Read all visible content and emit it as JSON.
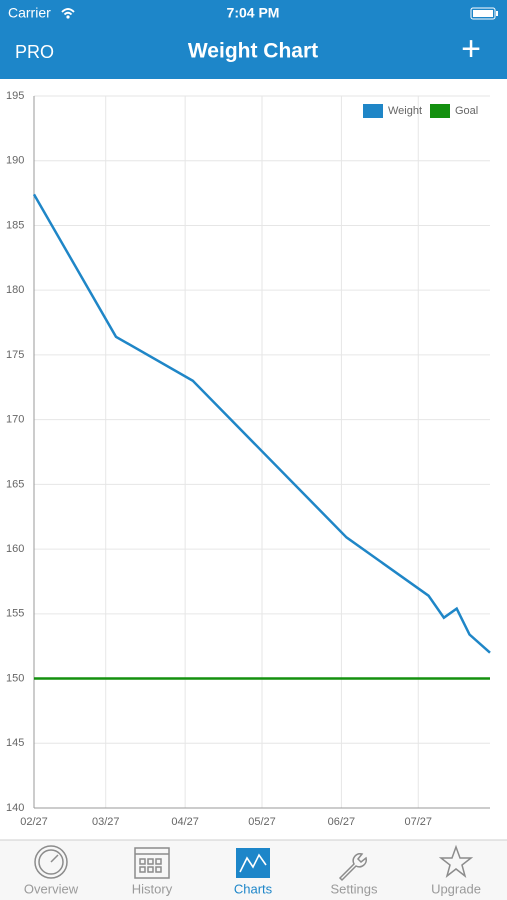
{
  "status_bar": {
    "carrier": "Carrier",
    "time": "7:04 PM"
  },
  "nav_bar": {
    "left": "PRO",
    "title": "Weight Chart",
    "right": "+"
  },
  "chart_data": {
    "type": "line",
    "xlim": [
      "02/27",
      "08/24"
    ],
    "xticks": [
      "02/27",
      "03/27",
      "04/27",
      "05/27",
      "06/27",
      "07/27"
    ],
    "ylim": [
      140,
      195
    ],
    "yticks": [
      140,
      145,
      150,
      155,
      160,
      165,
      170,
      175,
      180,
      185,
      190,
      195
    ],
    "grid": true,
    "legend": "top-right",
    "series": [
      {
        "name": "Weight",
        "color": "#1f86c7",
        "x": [
          "02/27",
          "03/31",
          "04/30",
          "06/29",
          "07/31",
          "08/06",
          "08/11",
          "08/16",
          "08/24"
        ],
        "values": [
          187.4,
          176.4,
          173.0,
          160.9,
          156.4,
          154.7,
          155.4,
          153.4,
          152.0
        ]
      },
      {
        "name": "Goal",
        "color": "#14900f",
        "x": [
          "02/27",
          "08/24"
        ],
        "values": [
          150,
          150
        ]
      }
    ]
  },
  "tab_bar": {
    "items": [
      {
        "label": "Overview"
      },
      {
        "label": "History"
      },
      {
        "label": "Charts"
      },
      {
        "label": "Settings"
      },
      {
        "label": "Upgrade"
      }
    ]
  }
}
